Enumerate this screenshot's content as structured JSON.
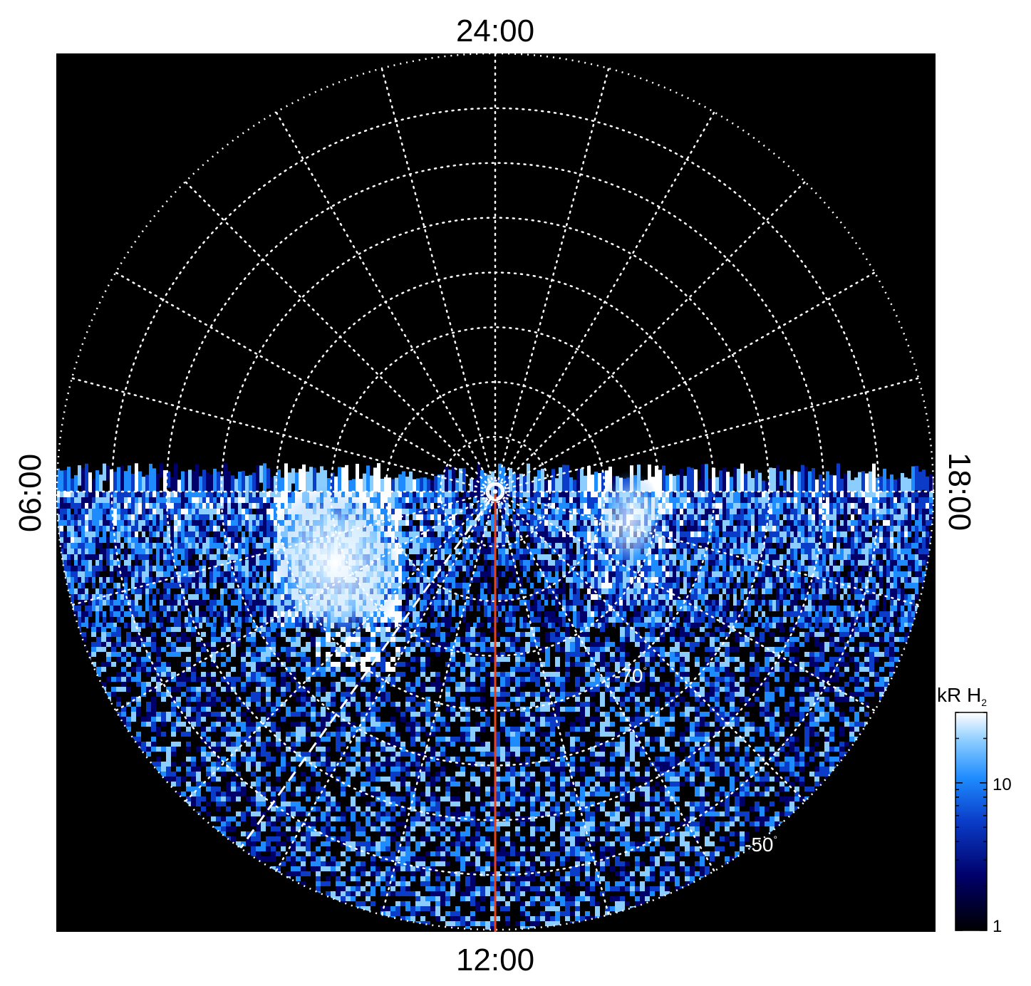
{
  "map": {
    "type": "polar-projection",
    "hemisphere": "south",
    "labels": {
      "top": "24:00",
      "bottom": "12:00",
      "left": "06:00",
      "right": "18:00"
    },
    "latitude_labels": [
      "-70",
      "-50"
    ],
    "degree_symbol": "°",
    "latitude_circles": [
      -55,
      -60,
      -65,
      -70,
      -75,
      -80,
      -85,
      -89
    ],
    "meridian_count": 24,
    "noon_meridian_color": "#e8431a",
    "grid_color": "#ffffff",
    "background_color": "#000000",
    "emission": {
      "description_hidden": "",
      "bright_patch_color": "#ffffff"
    }
  },
  "colorbar": {
    "title_main": "kR H",
    "title_sub": "2",
    "ticks": [
      "10",
      "1"
    ],
    "scale": "log",
    "colors": [
      "#000000",
      "#00006a",
      "#0a3cc8",
      "#1e8cff",
      "#8ccdff",
      "#ffffff"
    ]
  }
}
